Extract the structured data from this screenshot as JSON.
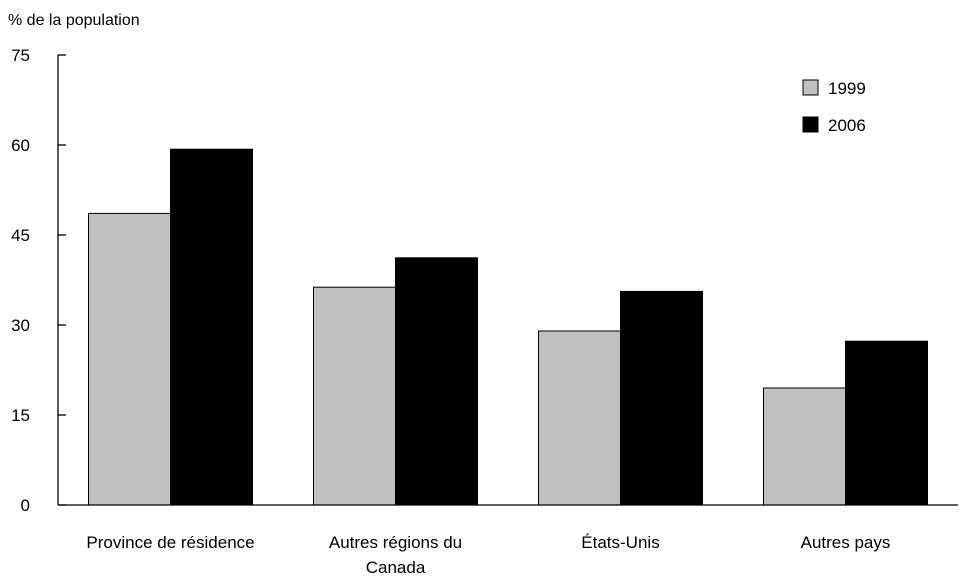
{
  "chart_data": {
    "type": "bar",
    "title": "",
    "ylabel": "% de la population",
    "xlabel": "",
    "ylim": [
      0,
      75
    ],
    "yticks": [
      0,
      15,
      30,
      45,
      60,
      75
    ],
    "grid": false,
    "legend_position": "top-right",
    "categories": [
      "Province de résidence",
      "Autres régions du Canada",
      "États-Unis",
      "Autres pays"
    ],
    "category_lines": [
      [
        "Province de résidence"
      ],
      [
        "Autres régions du",
        "Canada"
      ],
      [
        "États-Unis"
      ],
      [
        "Autres pays"
      ]
    ],
    "series": [
      {
        "name": "1999",
        "color": "#c0c0c0",
        "values": [
          48.6,
          36.3,
          29.0,
          19.5
        ]
      },
      {
        "name": "2006",
        "color": "#000000",
        "values": [
          59.3,
          41.2,
          35.6,
          27.3
        ]
      }
    ]
  }
}
